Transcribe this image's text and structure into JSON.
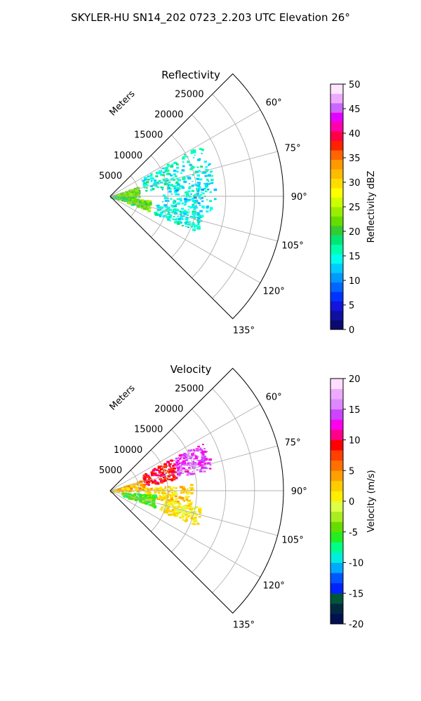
{
  "figure": {
    "suptitle": "SKYLER-HU  SN14_202  0723_2.203 UTC Elevation 26°"
  },
  "colors": {
    "grid": "#b0b0b0",
    "frame": "#000000"
  },
  "chart_data": [
    {
      "type": "polar_sector",
      "title": "Reflectivity",
      "radial_label": "Meters",
      "theta_range_deg": [
        45,
        135
      ],
      "theta_ticks": [
        "60°",
        "75°",
        "90°",
        "105°",
        "120°",
        "135°"
      ],
      "theta_tick_values": [
        60,
        75,
        90,
        105,
        120,
        135
      ],
      "r_range_m": [
        0,
        30000
      ],
      "r_ticks": [
        "5000",
        "10000",
        "15000",
        "20000",
        "25000"
      ],
      "r_tick_values": [
        5000,
        10000,
        15000,
        20000,
        25000
      ],
      "colorbar": {
        "label": "Reflectivity dBZ",
        "range": [
          0,
          50
        ],
        "ticks": [
          "0",
          "5",
          "10",
          "15",
          "20",
          "25",
          "30",
          "35",
          "40",
          "45",
          "50"
        ],
        "colormap": "pyart_NWSRef"
      },
      "echo_regions": [
        {
          "theta_deg": [
            70,
            90
          ],
          "r_m": [
            0,
            5000
          ],
          "value": 22
        },
        {
          "theta_deg": [
            90,
            105
          ],
          "r_m": [
            0,
            4000
          ],
          "value": 20
        },
        {
          "theta_deg": [
            60,
            80
          ],
          "r_m": [
            6000,
            18000
          ],
          "value": 15
        },
        {
          "theta_deg": [
            80,
            100
          ],
          "r_m": [
            9000,
            18000
          ],
          "value": 14
        },
        {
          "theta_deg": [
            95,
            110
          ],
          "r_m": [
            3000,
            7000
          ],
          "value": 22
        },
        {
          "theta_deg": [
            100,
            112
          ],
          "r_m": [
            8000,
            16000
          ],
          "value": 15
        }
      ]
    },
    {
      "type": "polar_sector",
      "title": "Velocity",
      "radial_label": "Meters",
      "theta_range_deg": [
        45,
        135
      ],
      "theta_ticks": [
        "60°",
        "75°",
        "90°",
        "105°",
        "120°",
        "135°"
      ],
      "theta_tick_values": [
        60,
        75,
        90,
        105,
        120,
        135
      ],
      "r_range_m": [
        0,
        30000
      ],
      "r_ticks": [
        "5000",
        "10000",
        "15000",
        "20000",
        "25000"
      ],
      "r_tick_values": [
        5000,
        10000,
        15000,
        20000,
        25000
      ],
      "colorbar": {
        "label": "Velocity (m/s)",
        "range": [
          -20,
          20
        ],
        "ticks": [
          "-20",
          "-15",
          "-10",
          "-5",
          "0",
          "5",
          "10",
          "15",
          "20"
        ],
        "colormap": "pyart_BuDRd18"
      },
      "echo_regions": [
        {
          "theta_deg": [
            70,
            90
          ],
          "r_m": [
            0,
            6000
          ],
          "value": 3
        },
        {
          "theta_deg": [
            62,
            80
          ],
          "r_m": [
            6000,
            12000
          ],
          "value": 9
        },
        {
          "theta_deg": [
            62,
            78
          ],
          "r_m": [
            12000,
            18000
          ],
          "value": 14
        },
        {
          "theta_deg": [
            85,
            100
          ],
          "r_m": [
            6000,
            14000
          ],
          "value": 2
        },
        {
          "theta_deg": [
            95,
            110
          ],
          "r_m": [
            2000,
            8000
          ],
          "value": -5
        },
        {
          "theta_deg": [
            100,
            112
          ],
          "r_m": [
            9000,
            16000
          ],
          "value": 1
        }
      ]
    }
  ]
}
